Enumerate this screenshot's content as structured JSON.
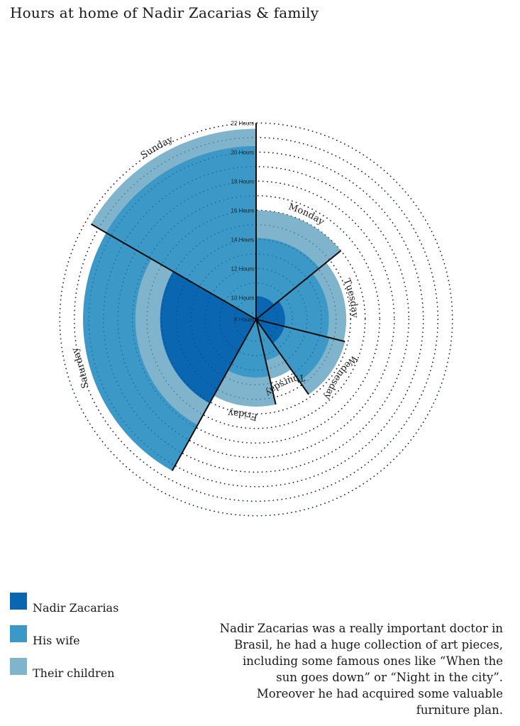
{
  "title": "Hours at home of Nadir Zacarias & family",
  "chart_data": {
    "type": "radial_area",
    "max_hours": 22,
    "axis_ticks": [
      {
        "value": 8,
        "label": "8 Hours"
      },
      {
        "value": 10,
        "label": "10 Hours"
      },
      {
        "value": 12,
        "label": "12 Hours"
      },
      {
        "value": 14,
        "label": "14 Hours"
      },
      {
        "value": 16,
        "label": "16 Hours"
      },
      {
        "value": 18,
        "label": "18 Hours"
      },
      {
        "value": 20,
        "label": "20 Hours"
      },
      {
        "value": 22,
        "label": "22 Hours"
      }
    ],
    "dotted_rings": [
      6,
      7,
      8,
      9,
      10,
      11,
      12,
      13,
      14,
      15,
      16,
      17,
      18,
      19,
      20,
      21,
      22
    ],
    "categories": [
      "Monday",
      "Tuesday",
      "Wednesday",
      "Thursday",
      "Friday",
      "Saturday",
      "Sunday"
    ],
    "series": [
      {
        "name": "Nadir Zacarias",
        "color": "#0b66b2",
        "values": [
          10.1,
          10.5,
          10.5,
          8.6,
          7.2,
          15.1,
          20.4
        ]
      },
      {
        "name": "His wife",
        "color": "#3c98c6",
        "values": [
          14.1,
          13.5,
          13.7,
          11.4,
          12.5,
          20.4,
          20.4
        ]
      },
      {
        "name": "Their children",
        "color": "#80b3cc",
        "values": [
          16.0,
          14.7,
          14.8,
          12.7,
          14.5,
          16.8,
          21.6
        ]
      }
    ]
  },
  "legend": [
    {
      "label": "Nadir Zacarias",
      "color": "#0b66b2"
    },
    {
      "label": "His wife",
      "color": "#3c98c6"
    },
    {
      "label": "Their children",
      "color": "#80b3cc"
    }
  ],
  "note": "Nadir Zacarias was a really important doctor in Brasil, he had a huge collection of art pieces, including some famous ones like “When the sun goes down” or  “Night in the city”. Moreover he had acquired some valuable furniture plan."
}
